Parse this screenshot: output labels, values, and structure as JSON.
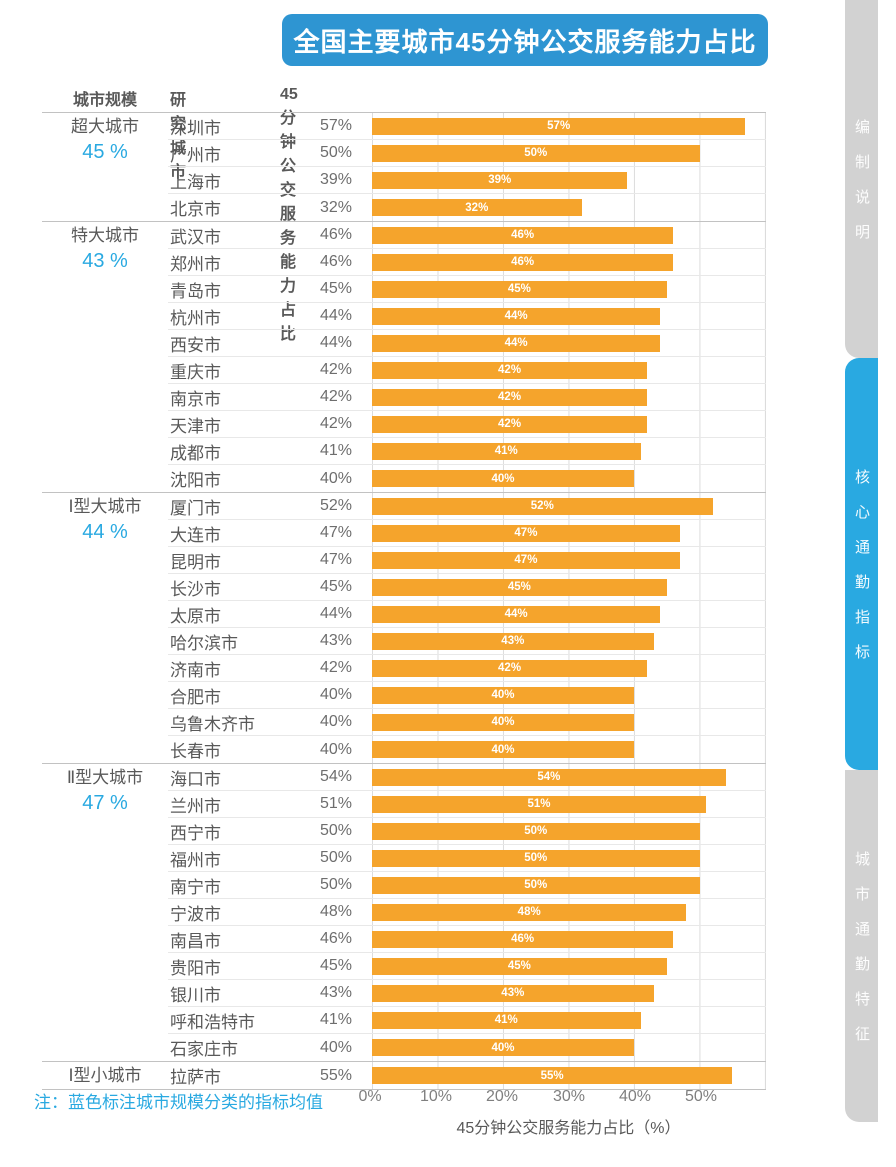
{
  "title": "全国主要城市45分钟公交服务能力占比",
  "header": {
    "col_scale": "城市规模",
    "col_city": "研究城市",
    "col_value": "45分钟公交服务能力占比"
  },
  "note": "注：蓝色标注城市规模分类的指标均值",
  "sidebar": {
    "tabs": [
      {
        "label": "编制说明",
        "active": false
      },
      {
        "label": "核心通勤指标",
        "active": true
      },
      {
        "label": "城市通勤特征",
        "active": false
      }
    ]
  },
  "colors": {
    "banner_blue": "#2E95D2",
    "accent_blue": "#29A9E1",
    "bar_orange": "#F5A42C",
    "sidebar_gray": "#D2D2D2"
  },
  "chart_data": {
    "type": "bar",
    "orientation": "horizontal",
    "title": "全国主要城市45分钟公交服务能力占比",
    "xlabel": "45分钟公交服务能力占比（%）",
    "xlim": [
      0,
      60
    ],
    "xticks": [
      "0%",
      "10%",
      "20%",
      "30%",
      "40%",
      "50%"
    ],
    "grid": true,
    "value_suffix": "%",
    "groups": [
      {
        "scale": "超大城市",
        "average": "45 %",
        "cities": [
          {
            "name": "深圳市",
            "value": 57
          },
          {
            "name": "广州市",
            "value": 50
          },
          {
            "name": "上海市",
            "value": 39
          },
          {
            "name": "北京市",
            "value": 32
          }
        ]
      },
      {
        "scale": "特大城市",
        "average": "43 %",
        "cities": [
          {
            "name": "武汉市",
            "value": 46
          },
          {
            "name": "郑州市",
            "value": 46
          },
          {
            "name": "青岛市",
            "value": 45
          },
          {
            "name": "杭州市",
            "value": 44
          },
          {
            "name": "西安市",
            "value": 44
          },
          {
            "name": "重庆市",
            "value": 42
          },
          {
            "name": "南京市",
            "value": 42
          },
          {
            "name": "天津市",
            "value": 42
          },
          {
            "name": "成都市",
            "value": 41
          },
          {
            "name": "沈阳市",
            "value": 40
          }
        ]
      },
      {
        "scale": "Ⅰ型大城市",
        "average": "44 %",
        "cities": [
          {
            "name": "厦门市",
            "value": 52
          },
          {
            "name": "大连市",
            "value": 47
          },
          {
            "name": "昆明市",
            "value": 47
          },
          {
            "name": "长沙市",
            "value": 45
          },
          {
            "name": "太原市",
            "value": 44
          },
          {
            "name": "哈尔滨市",
            "value": 43
          },
          {
            "name": "济南市",
            "value": 42
          },
          {
            "name": "合肥市",
            "value": 40
          },
          {
            "name": "乌鲁木齐市",
            "value": 40
          },
          {
            "name": "长春市",
            "value": 40
          }
        ]
      },
      {
        "scale": "Ⅱ型大城市",
        "average": "47 %",
        "cities": [
          {
            "name": "海口市",
            "value": 54
          },
          {
            "name": "兰州市",
            "value": 51
          },
          {
            "name": "西宁市",
            "value": 50
          },
          {
            "name": "福州市",
            "value": 50
          },
          {
            "name": "南宁市",
            "value": 50
          },
          {
            "name": "宁波市",
            "value": 48
          },
          {
            "name": "南昌市",
            "value": 46
          },
          {
            "name": "贵阳市",
            "value": 45
          },
          {
            "name": "银川市",
            "value": 43
          },
          {
            "name": "呼和浩特市",
            "value": 41
          },
          {
            "name": "石家庄市",
            "value": 40
          }
        ]
      },
      {
        "scale": "Ⅰ型小城市",
        "average": null,
        "cities": [
          {
            "name": "拉萨市",
            "value": 55
          }
        ]
      }
    ]
  }
}
